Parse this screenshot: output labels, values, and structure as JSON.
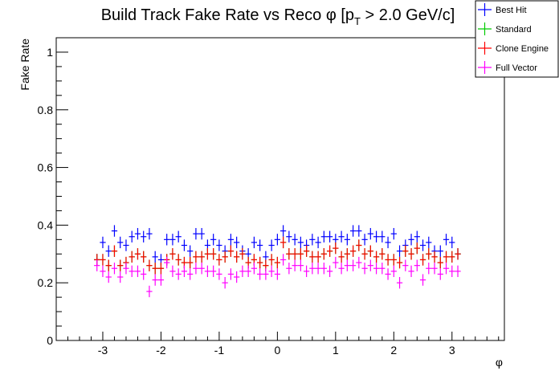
{
  "chart_data": {
    "type": "scatter",
    "title": "Build Track Fake Rate vs Reco",
    "title_symbol": "φ",
    "title_cut_prefix": "[p",
    "title_cut_sub": "T",
    "title_cut_suffix": " > 2.0 GeV/c]",
    "xlabel": "φ",
    "ylabel": "Fake Rate",
    "xlim": [
      -3.8,
      3.9
    ],
    "ylim": [
      0,
      1.05
    ],
    "xticks": [
      -3,
      -2,
      -1,
      0,
      1,
      2,
      3
    ],
    "xtick_labels": [
      "-3",
      "-2",
      "-1",
      "0",
      "1",
      "2",
      "3"
    ],
    "yticks": [
      0,
      0.2,
      0.4,
      0.6,
      0.8,
      1
    ],
    "ytick_labels": [
      "0",
      "0.2",
      "0.4",
      "0.6",
      "0.8",
      "1"
    ],
    "grid": false,
    "legend_position": "top-right",
    "x": [
      -3.1,
      -3.0,
      -2.9,
      -2.8,
      -2.7,
      -2.6,
      -2.5,
      -2.4,
      -2.3,
      -2.2,
      -2.1,
      -2.0,
      -1.9,
      -1.8,
      -1.7,
      -1.6,
      -1.5,
      -1.4,
      -1.3,
      -1.2,
      -1.1,
      -1.0,
      -0.9,
      -0.8,
      -0.7,
      -0.6,
      -0.5,
      -0.4,
      -0.3,
      -0.2,
      -0.1,
      0.0,
      0.1,
      0.2,
      0.3,
      0.4,
      0.5,
      0.6,
      0.7,
      0.8,
      0.9,
      1.0,
      1.1,
      1.2,
      1.3,
      1.4,
      1.5,
      1.6,
      1.7,
      1.8,
      1.9,
      2.0,
      2.1,
      2.2,
      2.3,
      2.4,
      2.5,
      2.6,
      2.7,
      2.8,
      2.9,
      3.0,
      3.1
    ],
    "series": [
      {
        "name": "Best Hit",
        "color": "#0000ff",
        "values": [
          0.28,
          0.34,
          0.31,
          0.38,
          0.34,
          0.33,
          0.36,
          0.37,
          0.36,
          0.37,
          0.29,
          0.28,
          0.35,
          0.35,
          0.36,
          0.33,
          0.31,
          0.37,
          0.37,
          0.33,
          0.35,
          0.33,
          0.31,
          0.35,
          0.34,
          0.31,
          0.3,
          0.34,
          0.33,
          0.29,
          0.33,
          0.35,
          0.38,
          0.36,
          0.35,
          0.34,
          0.33,
          0.35,
          0.34,
          0.36,
          0.36,
          0.35,
          0.36,
          0.35,
          0.38,
          0.38,
          0.35,
          0.37,
          0.36,
          0.36,
          0.34,
          0.37,
          0.31,
          0.33,
          0.35,
          0.36,
          0.33,
          0.34,
          0.31,
          0.31,
          0.35,
          0.34,
          0.3
        ]
      },
      {
        "name": "Standard",
        "color": "#00cc00",
        "values": [
          0.28,
          0.28,
          0.26,
          0.31,
          0.26,
          0.27,
          0.29,
          0.3,
          0.29,
          0.26,
          0.25,
          0.25,
          0.28,
          0.3,
          0.28,
          0.27,
          0.27,
          0.29,
          0.29,
          0.3,
          0.3,
          0.28,
          0.29,
          0.31,
          0.29,
          0.3,
          0.27,
          0.28,
          0.27,
          0.26,
          0.28,
          0.27,
          0.34,
          0.3,
          0.3,
          0.3,
          0.31,
          0.29,
          0.29,
          0.3,
          0.31,
          0.32,
          0.29,
          0.3,
          0.31,
          0.33,
          0.3,
          0.31,
          0.29,
          0.3,
          0.28,
          0.28,
          0.27,
          0.31,
          0.3,
          0.32,
          0.28,
          0.3,
          0.29,
          0.27,
          0.29,
          0.29,
          0.3
        ]
      },
      {
        "name": "Clone Engine",
        "color": "#ff0000",
        "values": [
          0.28,
          0.28,
          0.26,
          0.31,
          0.26,
          0.27,
          0.29,
          0.3,
          0.29,
          0.26,
          0.25,
          0.25,
          0.28,
          0.3,
          0.28,
          0.27,
          0.27,
          0.29,
          0.29,
          0.3,
          0.3,
          0.28,
          0.29,
          0.31,
          0.29,
          0.3,
          0.27,
          0.28,
          0.27,
          0.26,
          0.28,
          0.27,
          0.34,
          0.3,
          0.3,
          0.3,
          0.31,
          0.29,
          0.29,
          0.3,
          0.31,
          0.32,
          0.29,
          0.3,
          0.31,
          0.33,
          0.3,
          0.31,
          0.29,
          0.3,
          0.28,
          0.28,
          0.27,
          0.31,
          0.3,
          0.32,
          0.28,
          0.3,
          0.29,
          0.27,
          0.29,
          0.29,
          0.3
        ]
      },
      {
        "name": "Full Vector",
        "color": "#ff00ff",
        "values": [
          0.26,
          0.24,
          0.22,
          0.25,
          0.22,
          0.25,
          0.24,
          0.24,
          0.23,
          0.17,
          0.21,
          0.21,
          0.27,
          0.24,
          0.23,
          0.24,
          0.23,
          0.25,
          0.25,
          0.24,
          0.24,
          0.23,
          0.2,
          0.23,
          0.22,
          0.24,
          0.24,
          0.25,
          0.23,
          0.23,
          0.24,
          0.23,
          0.28,
          0.25,
          0.26,
          0.26,
          0.24,
          0.25,
          0.25,
          0.25,
          0.24,
          0.27,
          0.25,
          0.26,
          0.26,
          0.27,
          0.25,
          0.26,
          0.25,
          0.25,
          0.23,
          0.24,
          0.2,
          0.26,
          0.24,
          0.26,
          0.21,
          0.25,
          0.25,
          0.23,
          0.25,
          0.24,
          0.24
        ]
      }
    ]
  }
}
